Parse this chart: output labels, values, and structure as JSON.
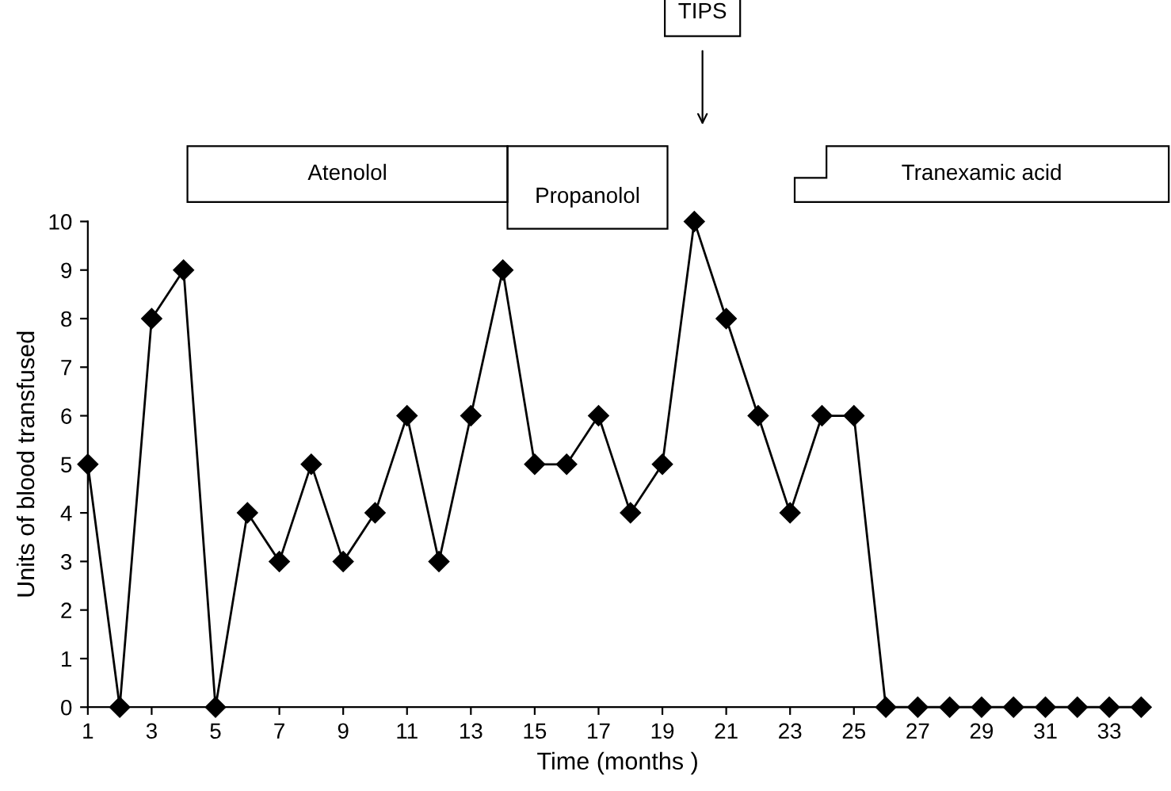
{
  "chart_data": {
    "type": "line",
    "xlabel": "Time (months )",
    "ylabel": "Units of blood transfused",
    "x": [
      1,
      2,
      3,
      4,
      5,
      6,
      7,
      8,
      9,
      10,
      11,
      12,
      13,
      14,
      15,
      16,
      17,
      18,
      19,
      20,
      21,
      22,
      23,
      24,
      25,
      26,
      27,
      28,
      29,
      30,
      31,
      32,
      33,
      34
    ],
    "series": [
      {
        "color": "#000000",
        "values": [
          5,
          0,
          8,
          9,
          0,
          4,
          3,
          5,
          3,
          4,
          6,
          3,
          6,
          9,
          5,
          5,
          6,
          4,
          5,
          10,
          8,
          6,
          4,
          6,
          6,
          0,
          0,
          0,
          0,
          0,
          0,
          0,
          0,
          0
        ]
      }
    ],
    "xlim": [
      1,
      34.2
    ],
    "xticks": [
      1,
      3,
      5,
      7,
      9,
      11,
      13,
      15,
      17,
      19,
      21,
      23,
      25,
      27,
      29,
      31,
      33
    ],
    "ylim": [
      0,
      10
    ],
    "yticks": [
      0,
      1,
      2,
      3,
      4,
      5,
      6,
      7,
      8,
      9,
      10
    ],
    "marker": "diamond",
    "line_style": "solid",
    "grid": false,
    "annotations": [
      "Atenolol",
      "Propanolol",
      "Tranexamic acid",
      "TIPS"
    ]
  }
}
